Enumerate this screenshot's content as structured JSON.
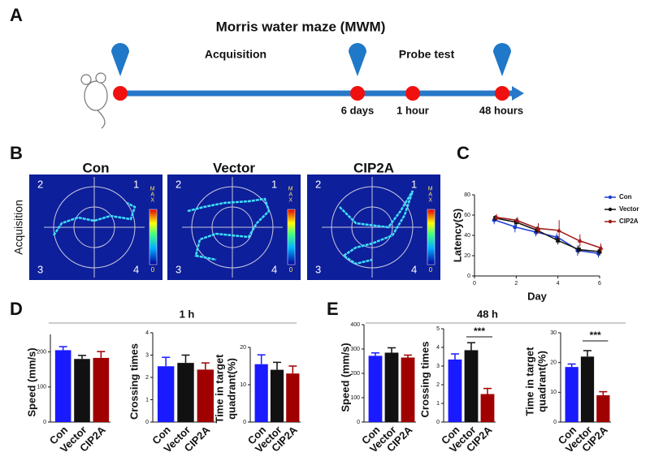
{
  "panel_labels": [
    "A",
    "B",
    "C",
    "D",
    "E"
  ],
  "timeline": {
    "title": "Morris water maze (MWM)",
    "phases": [
      "Acquisition",
      "Probe test"
    ],
    "points": [
      "6 days",
      "1 hour",
      "48 hours"
    ]
  },
  "tracks": {
    "row_label": "Acquisition",
    "groups": [
      "Con",
      "Vector",
      "CIP2A"
    ],
    "quadrants": [
      "2",
      "1",
      "3",
      "4"
    ],
    "colorbar": {
      "max": "MAX",
      "min": "0"
    }
  },
  "groups": [
    {
      "title": "1 h"
    },
    {
      "title": "48 h"
    }
  ],
  "chart_data": [
    {
      "type": "line",
      "ylabel": [
        "Latency(S)"
      ],
      "xlabel": "Day",
      "x": [
        1,
        2,
        3,
        4,
        5,
        6
      ],
      "xlim": [
        0,
        6
      ],
      "xticks": [
        0,
        2,
        4,
        6
      ],
      "ylim": [
        0,
        80
      ],
      "yticks": [
        0,
        20,
        40,
        60,
        80
      ],
      "series": [
        {
          "name": "Con",
          "color": "#1f3fd6",
          "marker": "circle",
          "values": [
            55,
            48,
            43,
            38,
            25,
            22
          ],
          "errors": [
            4,
            5,
            4,
            4,
            5,
            4
          ]
        },
        {
          "name": "Vector",
          "color": "#111111",
          "marker": "square",
          "values": [
            57,
            53,
            45,
            35,
            26,
            24
          ],
          "errors": [
            3,
            4,
            4,
            4,
            4,
            4
          ]
        },
        {
          "name": "CIP2A",
          "color": "#a01818",
          "marker": "triangle",
          "values": [
            58,
            55,
            47,
            45,
            35,
            28
          ],
          "errors": [
            3,
            3,
            5,
            10,
            6,
            4
          ]
        }
      ]
    },
    {
      "type": "bar",
      "ylabel": [
        "Speed (mm/s)"
      ],
      "categories": [
        "Con",
        "Vector",
        "CIP2A"
      ],
      "values": [
        205,
        180,
        183
      ],
      "errors": [
        10,
        10,
        18
      ],
      "colors": [
        "#1a1aff",
        "#111111",
        "#a00000"
      ],
      "ylim": [
        0,
        250
      ],
      "yticks": [
        0,
        100,
        200
      ]
    },
    {
      "type": "bar",
      "ylabel": [
        "Crossing times"
      ],
      "categories": [
        "Con",
        "Vector",
        "CIP2A"
      ],
      "values": [
        2.5,
        2.65,
        2.35
      ],
      "errors": [
        0.4,
        0.35,
        0.3
      ],
      "colors": [
        "#1a1aff",
        "#111111",
        "#a00000"
      ],
      "ylim": [
        0,
        4
      ],
      "yticks": [
        0,
        1,
        2,
        3,
        4
      ]
    },
    {
      "type": "bar",
      "ylabel": [
        "Time in target",
        "quadrant(%)"
      ],
      "categories": [
        "Con",
        "Vector",
        "CIP2A"
      ],
      "values": [
        15.5,
        14,
        13
      ],
      "errors": [
        2.5,
        2,
        2
      ],
      "colors": [
        "#1a1aff",
        "#111111",
        "#a00000"
      ],
      "ylim": [
        0,
        20
      ],
      "yticks": [
        0,
        10,
        20
      ]
    },
    {
      "type": "bar",
      "ylabel": [
        "Speed (mm/s)"
      ],
      "categories": [
        "Con",
        "Vector",
        "CIP2A"
      ],
      "values": [
        272,
        285,
        265
      ],
      "errors": [
        12,
        20,
        10
      ],
      "colors": [
        "#1a1aff",
        "#111111",
        "#a00000"
      ],
      "ylim": [
        0,
        400
      ],
      "yticks": [
        0,
        100,
        200,
        300,
        400
      ]
    },
    {
      "type": "bar",
      "ylabel": [
        "Crossing times"
      ],
      "categories": [
        "Con",
        "Vector",
        "CIP2A"
      ],
      "values": [
        3.35,
        3.85,
        1.5
      ],
      "errors": [
        0.3,
        0.4,
        0.3
      ],
      "colors": [
        "#1a1aff",
        "#111111",
        "#a00000"
      ],
      "ylim": [
        0,
        5
      ],
      "yticks": [
        0,
        1,
        2,
        3,
        4,
        5
      ],
      "annotation": "***"
    },
    {
      "type": "bar",
      "ylabel": [
        "Time in target",
        "quadrant(%)"
      ],
      "categories": [
        "Con",
        "Vector",
        "CIP2A"
      ],
      "values": [
        18.5,
        22,
        9
      ],
      "errors": [
        1,
        2,
        1.2
      ],
      "colors": [
        "#1a1aff",
        "#111111",
        "#a00000"
      ],
      "ylim": [
        0,
        30
      ],
      "yticks": [
        0,
        10,
        20,
        30
      ],
      "annotation": "***"
    }
  ]
}
